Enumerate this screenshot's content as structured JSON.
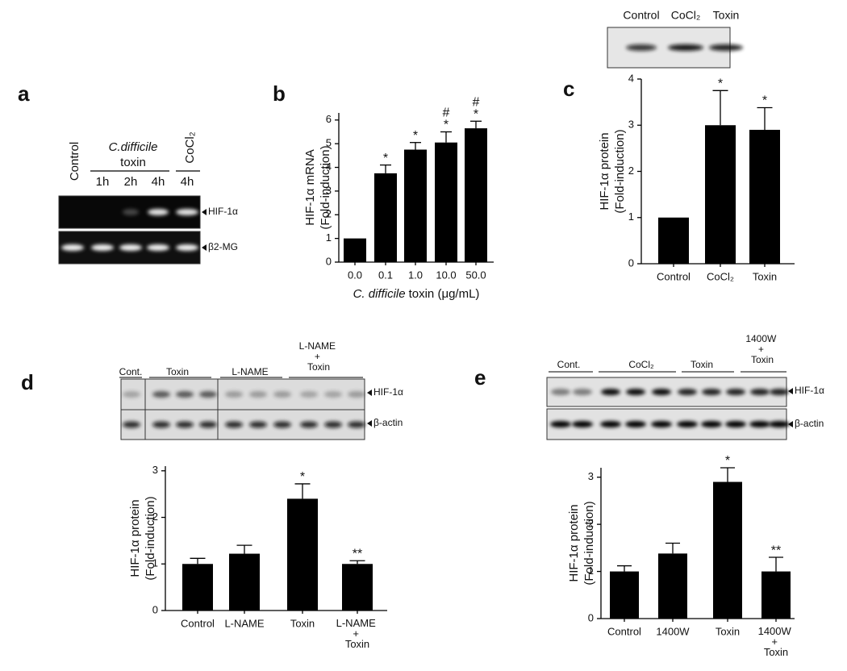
{
  "panels": {
    "letters": [
      "a",
      "b",
      "c",
      "d",
      "e"
    ],
    "a": {
      "lanes_top": [
        "Control",
        "C.difficile",
        "toxin",
        "CoCl₂"
      ],
      "lanes": [
        "1h",
        "2h",
        "4h",
        "4h"
      ],
      "rows": [
        "HIF-1α",
        "β2-MG"
      ]
    },
    "c_blot": {
      "lanes": [
        "Control",
        "CoCl₂",
        "Toxin"
      ]
    },
    "d": {
      "groups": [
        "Cont.",
        "Toxin",
        "L-NAME",
        "L-NAME + Toxin"
      ],
      "rows": [
        "HIF-1α",
        "β-actin"
      ]
    },
    "e": {
      "groups": [
        "Cont.",
        "CoCl₂",
        "Toxin",
        "1400W + Toxin"
      ],
      "rows": [
        "HIF-1α",
        "β-actin"
      ]
    }
  },
  "chart_data": [
    {
      "type": "bar",
      "ylabel": [
        "HIF-1α mRNA",
        "(Fold-induction)"
      ],
      "xlabel_italic": "C. difficile",
      "xlabel": "toxin (μg/mL)",
      "categories": [
        "0.0",
        "0.1",
        "1.0",
        "10.0",
        "50.0"
      ],
      "values": [
        1.0,
        3.75,
        4.75,
        5.05,
        5.65
      ],
      "errors": [
        0,
        0.35,
        0.3,
        0.45,
        0.3
      ],
      "annotations": [
        null,
        [
          "*"
        ],
        [
          "*"
        ],
        [
          "*",
          "#"
        ],
        [
          "*",
          "#"
        ]
      ],
      "color": "#000000",
      "ylim": [
        0,
        6.3
      ],
      "yticks": [
        0,
        1,
        2,
        3,
        4,
        5,
        6
      ]
    },
    {
      "type": "bar",
      "ylabel": [
        "HIF-1α protein",
        "(Fold-induction)"
      ],
      "categories": [
        "Control",
        "CoCl₂",
        "Toxin"
      ],
      "values": [
        1.0,
        3.0,
        2.9
      ],
      "errors": [
        0,
        0.75,
        0.48
      ],
      "annotations": [
        null,
        [
          "*"
        ],
        [
          "*"
        ]
      ],
      "color": "#000000",
      "ylim": [
        0,
        4
      ],
      "yticks": [
        0,
        1,
        2,
        3,
        4
      ]
    },
    {
      "type": "bar",
      "ylabel": [
        "HIF-1α protein",
        "(Fold-induction)"
      ],
      "categories": [
        "Control",
        "L-NAME",
        "Toxin",
        "L-NAME + Toxin"
      ],
      "values": [
        1.0,
        1.22,
        2.4,
        1.0
      ],
      "errors": [
        0.12,
        0.18,
        0.32,
        0.07
      ],
      "annotations": [
        null,
        null,
        [
          "*"
        ],
        [
          "**"
        ]
      ],
      "color": "#000000",
      "ylim": [
        0,
        3.1
      ],
      "yticks": [
        0,
        1,
        2,
        3
      ]
    },
    {
      "type": "bar",
      "ylabel": [
        "HIF-1α protein",
        "(Fold-induction)"
      ],
      "categories": [
        "Control",
        "1400W",
        "Toxin",
        "1400W + Toxin"
      ],
      "values": [
        1.0,
        1.38,
        2.9,
        1.0
      ],
      "errors": [
        0.12,
        0.22,
        0.3,
        0.3
      ],
      "annotations": [
        null,
        null,
        [
          "*"
        ],
        [
          "**"
        ]
      ],
      "color": "#000000",
      "ylim": [
        0,
        3.2
      ],
      "yticks": [
        0,
        1,
        2,
        3
      ]
    }
  ]
}
